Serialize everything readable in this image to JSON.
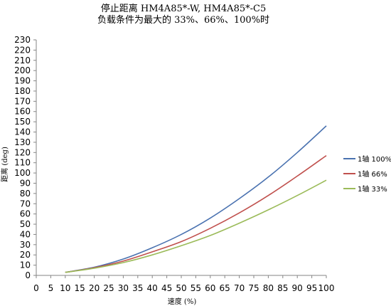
{
  "chart_data": {
    "type": "line",
    "title_line1": "停止距离 HM4A85*-W, HM4A85*-C5",
    "title_line2": "负载条件为最大的 33%、66%、100%时",
    "xlabel": "速度 (%)",
    "ylabel": "距离 (deg)",
    "xlim": [
      0,
      100
    ],
    "ylim": [
      0,
      230
    ],
    "xticks": [
      0,
      5,
      10,
      15,
      20,
      25,
      30,
      35,
      40,
      45,
      50,
      55,
      60,
      65,
      70,
      75,
      80,
      85,
      90,
      95,
      100
    ],
    "yticks": [
      0,
      10,
      20,
      30,
      40,
      50,
      60,
      70,
      80,
      90,
      100,
      110,
      120,
      130,
      140,
      150,
      160,
      170,
      180,
      190,
      200,
      210,
      220,
      230
    ],
    "x": [
      10,
      20,
      30,
      40,
      50,
      60,
      70,
      80,
      90,
      100
    ],
    "series": [
      {
        "name": "1轴 100%",
        "color": "#4a72b0",
        "values": [
          3,
          8,
          16,
          27,
          40,
          56,
          75,
          96,
          120,
          146
        ]
      },
      {
        "name": "1轴 66%",
        "color": "#c0504d",
        "values": [
          3,
          7.5,
          14,
          23,
          33,
          46,
          61,
          78,
          97,
          117
        ]
      },
      {
        "name": "1轴 33%",
        "color": "#9bbb59",
        "values": [
          3,
          7,
          12.5,
          20,
          29,
          39,
          51,
          64,
          78,
          93
        ]
      }
    ],
    "grid": false,
    "legend_position": "right"
  }
}
